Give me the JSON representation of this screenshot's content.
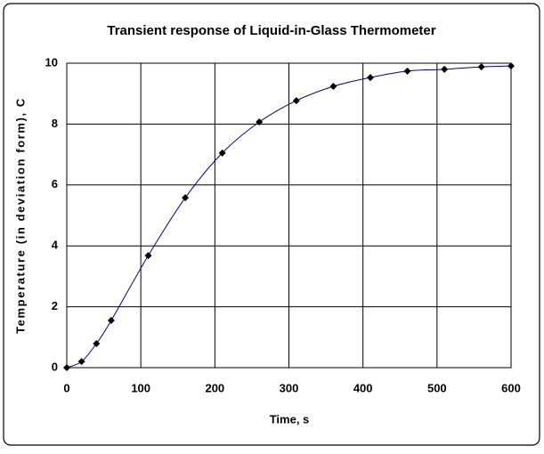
{
  "chart_data": {
    "type": "line",
    "title": "Transient response of Liquid-in-Glass Thermometer",
    "x_label": "Time, s",
    "y_label": "Temperature (in deviation form), C",
    "x": [
      0,
      20,
      40,
      60,
      110,
      160,
      210,
      260,
      310,
      360,
      410,
      460,
      510,
      560,
      600
    ],
    "series": [
      {
        "color": "#000080",
        "marker_color": "#000000",
        "values": [
          0,
          0.2,
          0.79,
          1.55,
          3.68,
          5.58,
          7.05,
          8.07,
          8.77,
          9.24,
          9.53,
          9.74,
          9.8,
          9.88,
          9.91
        ]
      }
    ],
    "xlim": [
      0,
      600
    ],
    "xticks": [
      0,
      100,
      200,
      300,
      400,
      500,
      600
    ],
    "ylim": [
      0,
      10
    ],
    "yticks": [
      0,
      2,
      4,
      6,
      8,
      10
    ],
    "grid": true
  }
}
